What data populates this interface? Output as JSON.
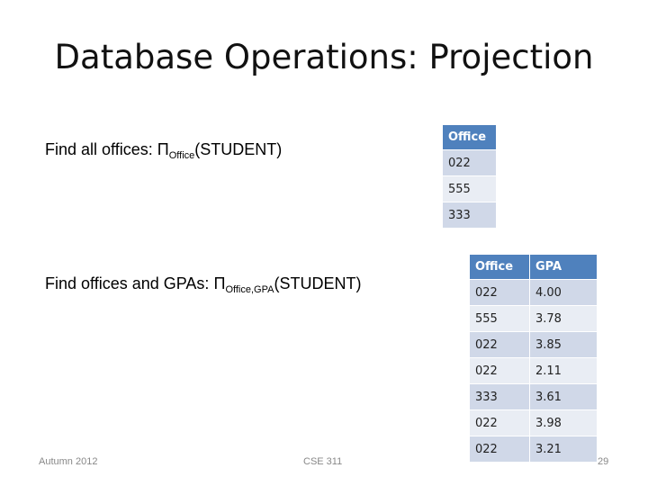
{
  "slide": {
    "title": "Database Operations: Projection",
    "query1": {
      "label": "Find all offices:",
      "operator": "Π",
      "subscript": "Office",
      "relation": "(STUDENT)"
    },
    "query2": {
      "label": "Find offices and GPAs:",
      "operator": "Π",
      "subscript": "Office,GPA",
      "relation": "(STUDENT)"
    },
    "table1": {
      "headers": [
        "Office"
      ],
      "rows": [
        "022",
        "555",
        "333"
      ]
    },
    "table2": {
      "headers": [
        "Office",
        "GPA"
      ],
      "rows": [
        [
          "022",
          "4.00"
        ],
        [
          "555",
          "3.78"
        ],
        [
          "022",
          "3.85"
        ],
        [
          "022",
          "2.11"
        ],
        [
          "333",
          "3.61"
        ],
        [
          "022",
          "3.98"
        ],
        [
          "022",
          "3.21"
        ]
      ]
    }
  },
  "footer": {
    "left": "Autumn 2012",
    "center": "CSE 311",
    "page_number": "29"
  },
  "colors": {
    "header_bg": "#4f81bd",
    "row_dark": "#d0d8e8",
    "row_light": "#e9edf4"
  }
}
